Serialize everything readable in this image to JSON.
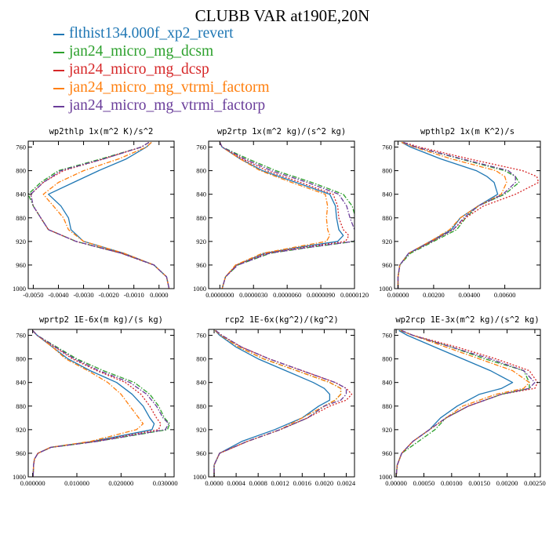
{
  "title": "CLUBB VAR at190E,20N",
  "legend": [
    {
      "label": "flthist134.000f_xp2_revert",
      "color": "#1f77b4",
      "dash": "solid"
    },
    {
      "label": "jan24_micro_mg_dcsm",
      "color": "#2ca02c",
      "dash": "dashdot"
    },
    {
      "label": "jan24_micro_mg_dcsp",
      "color": "#d62728",
      "dash": "dotted"
    },
    {
      "label": "jan24_micro_mg_vtrmi_factorm",
      "color": "#ff7f0e",
      "dash": "dashdot"
    },
    {
      "label": "jan24_micro_mg_vtrmi_factorp",
      "color": "#6a3d9a",
      "dash": "dashdot"
    }
  ],
  "chart_data": [
    {
      "type": "line",
      "title": "wp2thlp  1x(m^2 K)/s^2",
      "xlim": [
        -0.0052,
        0.0006
      ],
      "ylim": [
        1000,
        750
      ],
      "xticks": [
        -0.005,
        -0.004,
        -0.003,
        -0.002,
        -0.001,
        0.0
      ],
      "xtick_labels": [
        "-0.0050",
        "-0.0040",
        "-0.0030",
        "-0.0020",
        "-0.0010",
        "0.0000"
      ],
      "yticks": [
        760,
        800,
        840,
        880,
        920,
        960,
        1000
      ],
      "y": [
        752,
        760,
        780,
        800,
        820,
        840,
        860,
        880,
        900,
        920,
        940,
        960,
        980,
        1000
      ],
      "series": [
        {
          "name": "flthist134.000f_xp2_revert",
          "x": [
            -0.0003,
            -0.0005,
            -0.0013,
            -0.0024,
            -0.0034,
            -0.0044,
            -0.0039,
            -0.0036,
            -0.0035,
            -0.003,
            -0.0014,
            -0.0002,
            0.0003,
            0.0004
          ]
        },
        {
          "name": "jan24_micro_mg_dcsm",
          "x": [
            -0.0004,
            -0.0007,
            -0.0023,
            -0.004,
            -0.0047,
            -0.0052,
            -0.005,
            -0.0047,
            -0.0044,
            -0.0033,
            -0.0015,
            -0.0002,
            0.0003,
            0.0004
          ]
        },
        {
          "name": "jan24_micro_mg_dcsp",
          "x": [
            -0.0004,
            -0.0007,
            -0.0022,
            -0.0038,
            -0.0046,
            -0.0051,
            -0.005,
            -0.0047,
            -0.0044,
            -0.0033,
            -0.0015,
            -0.0002,
            0.0003,
            0.0004
          ]
        },
        {
          "name": "jan24_micro_mg_vtrmi_factorm",
          "x": [
            -0.0003,
            -0.0005,
            -0.0016,
            -0.003,
            -0.004,
            -0.0046,
            -0.0042,
            -0.0038,
            -0.0036,
            -0.003,
            -0.0014,
            -0.0002,
            0.0003,
            0.0004
          ]
        },
        {
          "name": "jan24_micro_mg_vtrmi_factorp",
          "x": [
            -0.0004,
            -0.0007,
            -0.0022,
            -0.0039,
            -0.0046,
            -0.0051,
            -0.005,
            -0.0047,
            -0.0044,
            -0.0033,
            -0.0015,
            -0.0002,
            0.0003,
            0.0004
          ]
        }
      ]
    },
    {
      "type": "line",
      "title": "wp2rtp  1x(m^2 kg)/(s^2 kg)",
      "xlim": [
        -1e-06,
        1.2e-05
      ],
      "ylim": [
        1000,
        750
      ],
      "xticks": [
        0.0,
        3e-06,
        6e-06,
        9e-06,
        1.2e-05
      ],
      "xtick_labels": [
        "0.0000000",
        "0.0000030",
        "0.0000060",
        "0.0000090",
        "0.0000120"
      ],
      "yticks": [
        760,
        800,
        840,
        880,
        920,
        960,
        1000
      ],
      "y": [
        752,
        760,
        780,
        800,
        820,
        840,
        860,
        880,
        900,
        910,
        920,
        930,
        940,
        960,
        980,
        1000
      ],
      "series": [
        {
          "name": "flthist134.000f_xp2_revert",
          "x": [
            0.0,
            2e-07,
            1.8e-06,
            3.8e-06,
            6.8e-06,
            9.8e-06,
            1.03e-05,
            1.04e-05,
            1.06e-05,
            1.1e-05,
            1.05e-05,
            7e-06,
            4e-06,
            1.5e-06,
            5e-07,
            2e-07
          ]
        },
        {
          "name": "jan24_micro_mg_dcsm",
          "x": [
            0.0,
            2e-07,
            2.5e-06,
            5e-06,
            8.2e-06,
            1.1e-05,
            1.18e-05,
            1.21e-05,
            1.25e-05,
            1.27e-05,
            1.2e-05,
            8e-06,
            4.5e-06,
            1.6e-06,
            5e-07,
            2e-07
          ]
        },
        {
          "name": "jan24_micro_mg_dcsp",
          "x": [
            0.0,
            2e-07,
            2e-06,
            4.2e-06,
            7.2e-06,
            1.01e-05,
            1.05e-05,
            1.06e-05,
            1.1e-05,
            1.15e-05,
            1.12e-05,
            7.4e-06,
            4.2e-06,
            1.5e-06,
            5e-07,
            2e-07
          ]
        },
        {
          "name": "jan24_micro_mg_vtrmi_factorm",
          "x": [
            0.0,
            2e-07,
            1.8e-06,
            3.6e-06,
            6.4e-06,
            9.4e-06,
            9.6e-06,
            9.5e-06,
            9.6e-06,
            9.8e-06,
            9.5e-06,
            6.6e-06,
            3.8e-06,
            1.4e-06,
            5e-07,
            2e-07
          ]
        },
        {
          "name": "jan24_micro_mg_vtrmi_factorp",
          "x": [
            0.0,
            2e-07,
            2.2e-06,
            4.6e-06,
            7.8e-06,
            1.06e-05,
            1.13e-05,
            1.16e-05,
            1.2e-05,
            1.24e-05,
            1.19e-05,
            7.9e-06,
            4.4e-06,
            1.6e-06,
            5e-07,
            2e-07
          ]
        }
      ]
    },
    {
      "type": "line",
      "title": "wpthlp2  1x(m K^2)/s",
      "xlim": [
        -0.0002,
        0.008
      ],
      "ylim": [
        1000,
        750
      ],
      "xticks": [
        0.0,
        0.002,
        0.004,
        0.006
      ],
      "xtick_labels": [
        "0.00000",
        "0.00200",
        "0.00400",
        "0.00600"
      ],
      "yticks": [
        760,
        800,
        840,
        880,
        920,
        960,
        1000
      ],
      "y": [
        752,
        760,
        780,
        800,
        810,
        820,
        840,
        860,
        880,
        900,
        920,
        940,
        960,
        980,
        1000
      ],
      "series": [
        {
          "name": "flthist134.000f_xp2_revert",
          "x": [
            0.0002,
            0.0007,
            0.0024,
            0.0044,
            0.005,
            0.0054,
            0.0056,
            0.0045,
            0.0035,
            0.003,
            0.0018,
            0.0006,
            0.0001,
            0.0,
            0.0
          ]
        },
        {
          "name": "jan24_micro_mg_dcsm",
          "x": [
            0.0003,
            0.001,
            0.0035,
            0.006,
            0.0066,
            0.0068,
            0.006,
            0.0045,
            0.0038,
            0.0033,
            0.002,
            0.0007,
            0.0001,
            0.0,
            0.0
          ]
        },
        {
          "name": "jan24_micro_mg_dcsp",
          "x": [
            0.0003,
            0.0012,
            0.004,
            0.007,
            0.0078,
            0.0079,
            0.0066,
            0.0048,
            0.0038,
            0.0031,
            0.0019,
            0.0006,
            0.0001,
            0.0,
            0.0
          ]
        },
        {
          "name": "jan24_micro_mg_vtrmi_factorm",
          "x": [
            0.0002,
            0.0009,
            0.003,
            0.0055,
            0.006,
            0.0061,
            0.0058,
            0.0045,
            0.0035,
            0.0029,
            0.0018,
            0.0006,
            0.0001,
            0.0,
            0.0
          ]
        },
        {
          "name": "jan24_micro_mg_vtrmi_factorp",
          "x": [
            0.0003,
            0.001,
            0.0036,
            0.0062,
            0.0066,
            0.0066,
            0.0059,
            0.0045,
            0.0037,
            0.0031,
            0.0019,
            0.0006,
            0.0001,
            0.0,
            0.0
          ]
        }
      ]
    },
    {
      "type": "line",
      "title": "wprtp2  1E-6x(m kg)/(s kg)",
      "xlim": [
        -0.001,
        0.032
      ],
      "ylim": [
        1000,
        750
      ],
      "xticks": [
        0.0,
        0.01,
        0.02,
        0.03
      ],
      "xtick_labels": [
        "0.000000",
        "0.010000",
        "0.020000",
        "0.030000"
      ],
      "yticks": [
        760,
        800,
        840,
        880,
        920,
        960,
        1000
      ],
      "y": [
        752,
        760,
        780,
        800,
        820,
        840,
        860,
        880,
        900,
        910,
        920,
        940,
        950,
        960,
        970,
        980,
        1000
      ],
      "series": [
        {
          "name": "flthist134.000f_xp2_revert",
          "x": [
            0.0,
            0.001,
            0.0045,
            0.008,
            0.013,
            0.019,
            0.0225,
            0.025,
            0.0265,
            0.0275,
            0.027,
            0.0135,
            0.004,
            0.0012,
            0.0004,
            0.0002,
            0.0001
          ]
        },
        {
          "name": "jan24_micro_mg_dcsm",
          "x": [
            0.0,
            0.001,
            0.0055,
            0.01,
            0.016,
            0.023,
            0.0265,
            0.0285,
            0.0298,
            0.031,
            0.0305,
            0.0145,
            0.0042,
            0.0012,
            0.0004,
            0.0002,
            0.0001
          ]
        },
        {
          "name": "jan24_micro_mg_dcsp",
          "x": [
            0.0,
            0.001,
            0.005,
            0.009,
            0.0145,
            0.021,
            0.0245,
            0.0265,
            0.028,
            0.029,
            0.0285,
            0.014,
            0.0041,
            0.0012,
            0.0004,
            0.0002,
            0.0001
          ]
        },
        {
          "name": "jan24_micro_mg_vtrmi_factorm",
          "x": [
            0.0,
            0.001,
            0.0045,
            0.0075,
            0.0125,
            0.017,
            0.02,
            0.022,
            0.024,
            0.025,
            0.0235,
            0.013,
            0.004,
            0.0012,
            0.0004,
            0.0002,
            0.0001
          ]
        },
        {
          "name": "jan24_micro_mg_vtrmi_factorp",
          "x": [
            0.0,
            0.001,
            0.0052,
            0.0095,
            0.015,
            0.022,
            0.0258,
            0.028,
            0.0295,
            0.0308,
            0.03,
            0.0145,
            0.0042,
            0.0012,
            0.0004,
            0.0002,
            0.0001
          ]
        }
      ]
    },
    {
      "type": "line",
      "title": "rcp2  1E-6x(kg^2)/(kg^2)",
      "xlim": [
        -0.0001,
        0.00255
      ],
      "ylim": [
        1000,
        750
      ],
      "xticks": [
        0.0,
        0.0004,
        0.0008,
        0.0012,
        0.0016,
        0.002,
        0.0024
      ],
      "xtick_labels": [
        "0.0000",
        "0.0004",
        "0.0008",
        "0.0012",
        "0.0016",
        "0.0020",
        "0.0024"
      ],
      "yticks": [
        760,
        800,
        840,
        880,
        920,
        960,
        1000
      ],
      "y": [
        752,
        760,
        780,
        800,
        820,
        840,
        850,
        860,
        870,
        880,
        900,
        920,
        940,
        960,
        980,
        1000
      ],
      "series": [
        {
          "name": "flthist134.000f_xp2_revert",
          "x": [
            2e-05,
            0.0001,
            0.0004,
            0.0008,
            0.0013,
            0.0018,
            0.002,
            0.0021,
            0.0021,
            0.0019,
            0.0016,
            0.0011,
            0.0005,
            0.0001,
            0.0,
            0.0
          ]
        },
        {
          "name": "jan24_micro_mg_dcsm",
          "x": [
            2e-05,
            0.00012,
            0.00045,
            0.0009,
            0.0015,
            0.0021,
            0.0023,
            0.0023,
            0.0022,
            0.002,
            0.0017,
            0.0012,
            0.0006,
            0.0001,
            0.0,
            0.0
          ]
        },
        {
          "name": "jan24_micro_mg_dcsp",
          "x": [
            3e-05,
            0.00014,
            0.0005,
            0.001,
            0.0016,
            0.0022,
            0.0024,
            0.0025,
            0.0024,
            0.0021,
            0.0017,
            0.0012,
            0.0006,
            0.0001,
            0.0,
            0.0
          ]
        },
        {
          "name": "jan24_micro_mg_vtrmi_factorm",
          "x": [
            2e-05,
            0.00012,
            0.00045,
            0.0009,
            0.0015,
            0.0021,
            0.0023,
            0.0023,
            0.0022,
            0.002,
            0.0016,
            0.0012,
            0.0006,
            0.0001,
            0.0,
            0.0
          ]
        },
        {
          "name": "jan24_micro_mg_vtrmi_factorp",
          "x": [
            3e-05,
            0.00014,
            0.0005,
            0.001,
            0.0016,
            0.0022,
            0.0024,
            0.0024,
            0.0023,
            0.002,
            0.0017,
            0.0012,
            0.0006,
            0.0001,
            0.0,
            0.0
          ]
        }
      ]
    },
    {
      "type": "line",
      "title": "wp2rcp  1E-3x(m^2 kg)/(s^2 kg)",
      "xlim": [
        -3e-05,
        0.0026
      ],
      "ylim": [
        1000,
        750
      ],
      "xticks": [
        0.0,
        0.0005,
        0.001,
        0.0015,
        0.002,
        0.0025
      ],
      "xtick_labels": [
        "0.00000",
        "0.00050",
        "0.00100",
        "0.00150",
        "0.00200",
        "0.00250"
      ],
      "yticks": [
        760,
        800,
        840,
        880,
        920,
        960,
        1000
      ],
      "y": [
        752,
        760,
        780,
        800,
        820,
        840,
        850,
        860,
        880,
        900,
        920,
        940,
        960,
        980,
        1000
      ],
      "series": [
        {
          "name": "flthist134.000f_xp2_revert",
          "x": [
            5e-05,
            0.0002,
            0.0007,
            0.0012,
            0.0017,
            0.0021,
            0.0019,
            0.0015,
            0.0011,
            0.0008,
            0.0006,
            0.0003,
            0.0001,
            2e-05,
            0.0
          ]
        },
        {
          "name": "jan24_micro_mg_dcsm",
          "x": [
            8e-05,
            0.0003,
            0.001,
            0.0016,
            0.0023,
            0.0024,
            0.0024,
            0.0019,
            0.0013,
            0.0009,
            0.0007,
            0.0004,
            0.0001,
            2e-05,
            0.0
          ]
        },
        {
          "name": "jan24_micro_mg_dcsp",
          "x": [
            0.0001,
            0.0003,
            0.0011,
            0.0018,
            0.0024,
            0.00255,
            0.0025,
            0.0019,
            0.0013,
            0.0009,
            0.0006,
            0.0003,
            0.0001,
            2e-05,
            0.0
          ]
        },
        {
          "name": "jan24_micro_mg_vtrmi_factorm",
          "x": [
            8e-05,
            0.0003,
            0.0009,
            0.0015,
            0.0021,
            0.0024,
            0.0023,
            0.0018,
            0.0012,
            0.0009,
            0.0006,
            0.0003,
            0.0001,
            2e-05,
            0.0
          ]
        },
        {
          "name": "jan24_micro_mg_vtrmi_factorp",
          "x": [
            0.0001,
            0.0003,
            0.001,
            0.0017,
            0.0023,
            0.0025,
            0.0024,
            0.0019,
            0.0013,
            0.0009,
            0.0006,
            0.0003,
            0.0001,
            2e-05,
            0.0
          ]
        }
      ]
    }
  ]
}
